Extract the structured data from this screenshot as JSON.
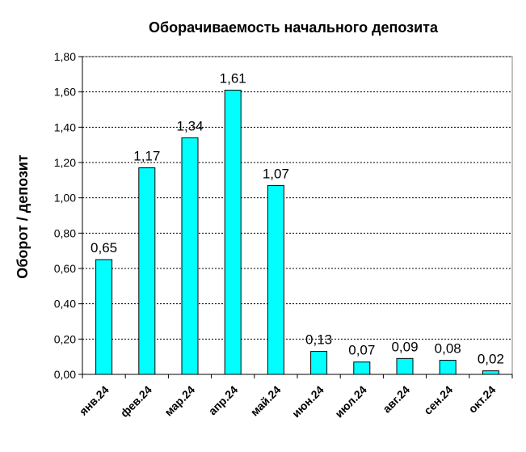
{
  "chart_data": {
    "type": "bar",
    "title": "Оборачиваемость начального депозита",
    "xlabel": "",
    "ylabel": "Оборот / депозит",
    "categories": [
      "янв.24",
      "фев.24",
      "мар.24",
      "апр.24",
      "май.24",
      "июн.24",
      "июл.24",
      "авг.24",
      "сен.24",
      "окт.24"
    ],
    "values": [
      0.65,
      1.17,
      1.34,
      1.61,
      1.07,
      0.13,
      0.07,
      0.09,
      0.08,
      0.02
    ],
    "data_labels": [
      "0,65",
      "1,17",
      "1,34",
      "1,61",
      "1,07",
      "0,13",
      "0,07",
      "0,09",
      "0,08",
      "0,02"
    ],
    "yticks": [
      "0,00",
      "0,20",
      "0,40",
      "0,60",
      "0,80",
      "1,00",
      "1,20",
      "1,40",
      "1,60",
      "1,80"
    ],
    "ylim": [
      0,
      1.8
    ],
    "grid": true,
    "legend": "none",
    "colors": {
      "bar_fill": "#00FFFF",
      "bar_stroke": "#000000",
      "grid": "#000000",
      "axis": "#000000"
    }
  }
}
